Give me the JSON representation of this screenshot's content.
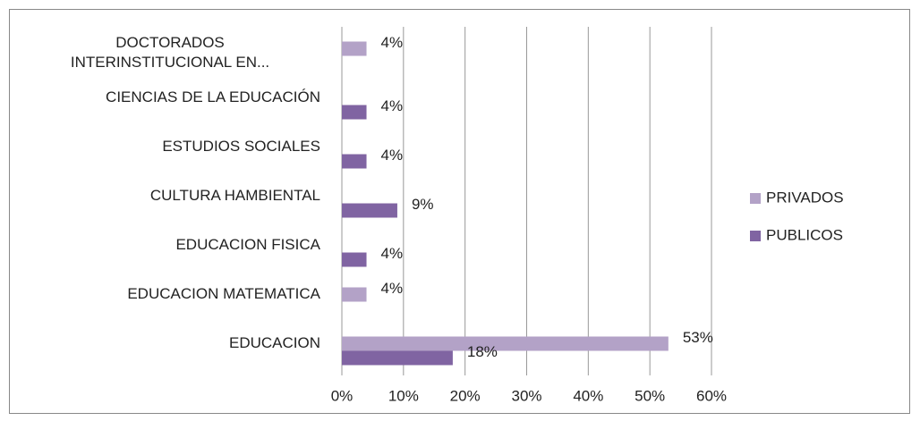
{
  "chart_data": {
    "type": "bar",
    "orientation": "horizontal",
    "categories": [
      "DOCTORADOS INTERINSTITUCIONAL EN...",
      "CIENCIAS DE LA EDUCACIÓN",
      "ESTUDIOS SOCIALES",
      "CULTURA HAMBIENTAL",
      "EDUCACION FISICA",
      "EDUCACION MATEMATICA",
      "EDUCACION"
    ],
    "series": [
      {
        "name": "PRIVADOS",
        "color": "#b3a2c7",
        "values": [
          4,
          null,
          null,
          null,
          null,
          4,
          53
        ],
        "value_labels": [
          "4%",
          null,
          null,
          null,
          null,
          "4%",
          "53%"
        ]
      },
      {
        "name": "PUBLICOS",
        "color": "#8064a2",
        "values": [
          null,
          4,
          4,
          9,
          4,
          null,
          18
        ],
        "value_labels": [
          null,
          "4%",
          "4%",
          "9%",
          "4%",
          null,
          "18%"
        ]
      }
    ],
    "xlim": [
      0,
      60
    ],
    "xticks": [
      {
        "value": 0,
        "label": "0%"
      },
      {
        "value": 10,
        "label": "10%"
      },
      {
        "value": 20,
        "label": "20%"
      },
      {
        "value": 30,
        "label": "30%"
      },
      {
        "value": 40,
        "label": "40%"
      },
      {
        "value": 50,
        "label": "50%"
      },
      {
        "value": 60,
        "label": "60%"
      }
    ],
    "grid": true,
    "legend": "right"
  }
}
